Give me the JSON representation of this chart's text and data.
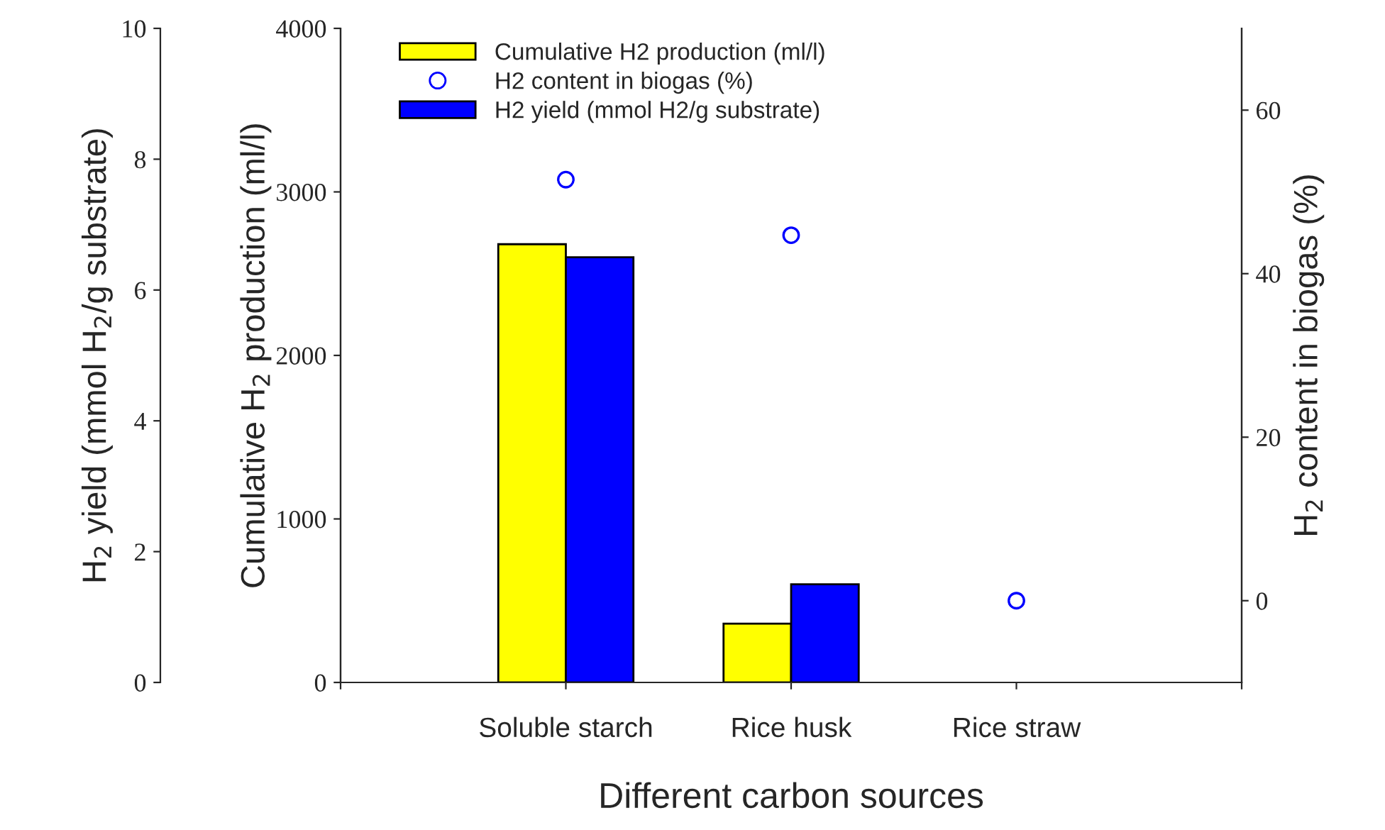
{
  "chart_data": {
    "type": "bar",
    "xlabel": "Different carbon sources",
    "ylabel": "Cumulative H$_{2}$ production (ml/l)",
    "y2label": "H$_{2}$ content in biogas (%)",
    "y3label": "H$_{2}$ yield (mmol H$_{2}$/g substrate)",
    "categories": [
      "Soluble starch",
      "Rice husk",
      "Rice straw"
    ],
    "series": [
      {
        "name": "Cumulative H2 production (ml/l)",
        "color": "#ffff00",
        "values": [
          2680,
          360,
          0
        ]
      },
      {
        "name": "H2 content in biogas (%)",
        "type": "scatter",
        "color": "#0000ff",
        "axis": "y2",
        "marker": "circle",
        "values": [
          51.5,
          44.7,
          0
        ]
      },
      {
        "name": "H2 yield (mmol H2/g substrate)",
        "color": "#0000ff",
        "axis": "y3",
        "values": [
          6.5,
          1.5,
          0
        ]
      }
    ],
    "ylim": [
      0,
      4000
    ],
    "yticks": [
      0,
      1000,
      2000,
      3000,
      4000
    ],
    "y2lim": [
      -10,
      70
    ],
    "y2ticks": [
      0,
      20,
      40,
      60
    ],
    "y3lim": [
      0,
      10
    ],
    "y3ticks": [
      0,
      2,
      4,
      6,
      8,
      10
    ],
    "legend": "top left",
    "grid": false
  }
}
